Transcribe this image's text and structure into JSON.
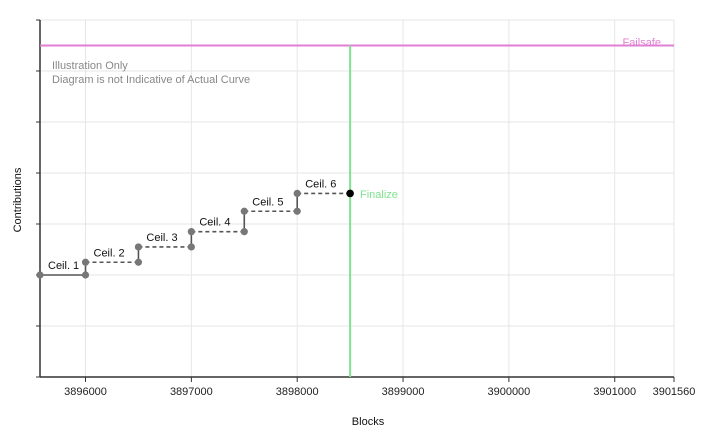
{
  "chart_data": {
    "type": "line",
    "title": "",
    "xlabel": "Blocks",
    "ylabel": "Contributions",
    "xlim": [
      3895570,
      3901560
    ],
    "ylim": [
      0,
      7
    ],
    "grid": true,
    "x_ticks": [
      3896000,
      3897000,
      3898000,
      3899000,
      3900000,
      3901000,
      3901560
    ],
    "x_tick_labels": [
      "3896000",
      "3897000",
      "3898000",
      "3899000",
      "3900000",
      "3901000",
      "3901560"
    ],
    "y_ticks": [
      0,
      1,
      2,
      3,
      4,
      5,
      6,
      7
    ],
    "annotation_lines": [
      "Illustration Only",
      "Diagram is not Indicative of Actual Curve"
    ],
    "failsafe": {
      "label": "Failsafe",
      "y": 6.5,
      "color": "#e07fd3"
    },
    "finalize": {
      "label": "Finalize",
      "x": 3898500,
      "y": 3.6,
      "color": "#7fe38f"
    },
    "series": [
      {
        "name": "Contributions",
        "color": "#555555",
        "points": [
          {
            "x": 3895570,
            "y": 2.0
          },
          {
            "x": 3896000,
            "y": 2.0
          },
          {
            "x": 3896000,
            "y": 2.25
          },
          {
            "x": 3896500,
            "y": 2.25
          },
          {
            "x": 3896500,
            "y": 2.55
          },
          {
            "x": 3897000,
            "y": 2.55
          },
          {
            "x": 3897000,
            "y": 2.85
          },
          {
            "x": 3897500,
            "y": 2.85
          },
          {
            "x": 3897500,
            "y": 3.25
          },
          {
            "x": 3898000,
            "y": 3.25
          },
          {
            "x": 3898000,
            "y": 3.6
          },
          {
            "x": 3898500,
            "y": 3.6
          }
        ]
      }
    ],
    "ceilings": [
      {
        "label": "Ceil. 1",
        "x": 3895570,
        "y": 2.0
      },
      {
        "label": "Ceil. 2",
        "x": 3896000,
        "y": 2.25
      },
      {
        "label": "Ceil. 3",
        "x": 3896500,
        "y": 2.55
      },
      {
        "label": "Ceil. 4",
        "x": 3897000,
        "y": 2.85
      },
      {
        "label": "Ceil. 5",
        "x": 3897500,
        "y": 3.25
      },
      {
        "label": "Ceil. 6",
        "x": 3898000,
        "y": 3.6
      }
    ]
  }
}
